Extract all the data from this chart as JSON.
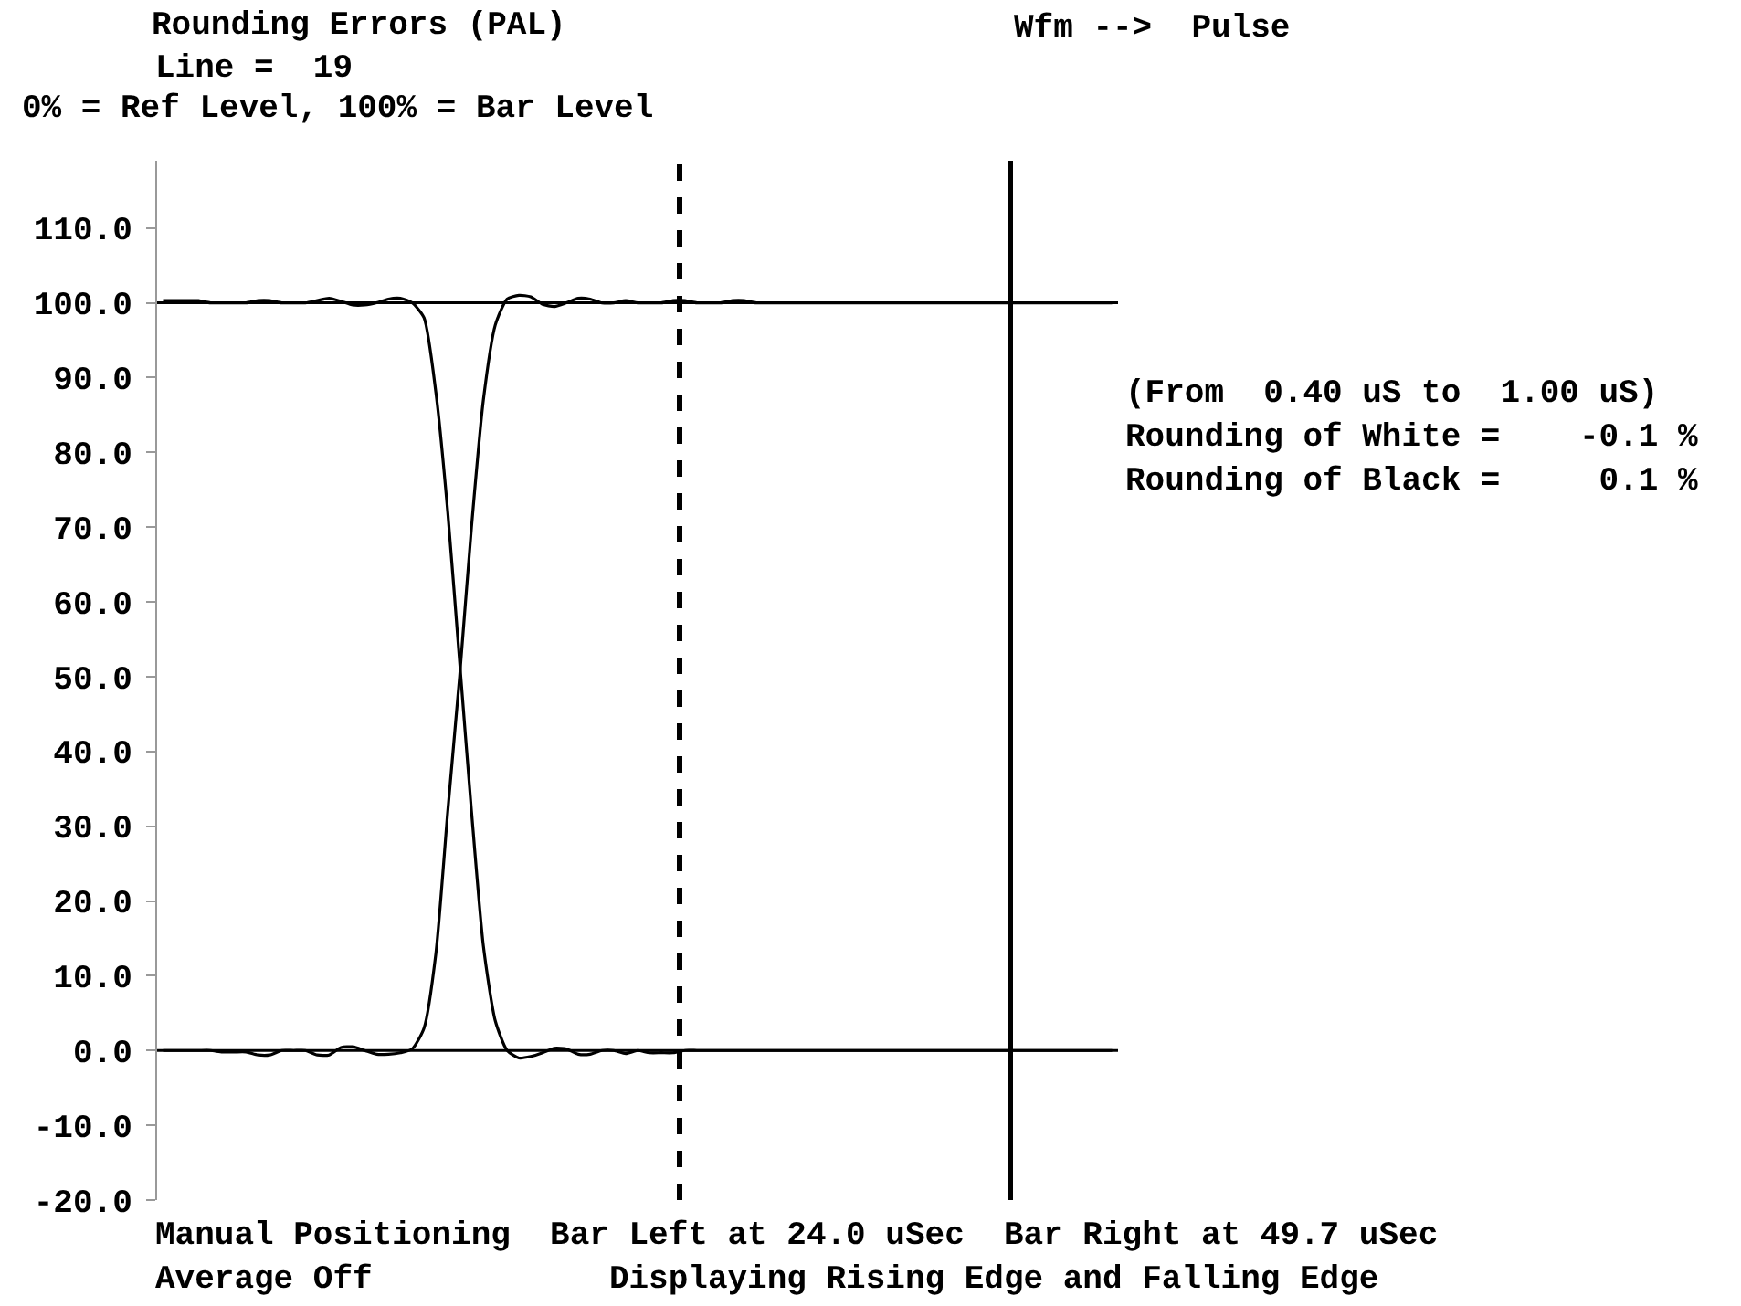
{
  "chart_data": {
    "type": "line",
    "title": "Rounding Errors (PAL)",
    "subtitle": "Line =  19",
    "annotations": [
      "0% = Ref Level, 100% = Bar Level",
      "Wfm -->  Pulse",
      "(From  0.40 uS to  1.00 uS)",
      "Rounding of White =    -0.1 %",
      "Rounding of Black =     0.1 %",
      "Manual Positioning  Bar Left at 24.0 uSec  Bar Right at 49.7 uSec",
      "Average Off            Displaying Rising Edge and Falling Edge"
    ],
    "categories": [
      null,
      null,
      null,
      null,
      null,
      null,
      null,
      null,
      null,
      null,
      null,
      null,
      null,
      null,
      null,
      null,
      null,
      null,
      null,
      null,
      null,
      null,
      null,
      null,
      null,
      null,
      null,
      null,
      null,
      null,
      null,
      null,
      null,
      null,
      null,
      null,
      null,
      null,
      null,
      null,
      null,
      null,
      null,
      null,
      null,
      null,
      null,
      null,
      null,
      null,
      null,
      null,
      null,
      null,
      null,
      null,
      null,
      null,
      null,
      null,
      null,
      null,
      null,
      null,
      null,
      null,
      null,
      null,
      null,
      null,
      null,
      null,
      null,
      null,
      null,
      null,
      null,
      null,
      null,
      null,
      null
    ],
    "series": [
      {
        "color": "#000000",
        "values": [
          100.3,
          100.3,
          100.3,
          100.3,
          100,
          100,
          100,
          100,
          100.3,
          100.3,
          100,
          100,
          100,
          100.3,
          100.6,
          100.2,
          99.7,
          99.7,
          100,
          100.5,
          100.6,
          100,
          98,
          88,
          72,
          52,
          32,
          14,
          4,
          0,
          -1,
          -0.8,
          -0.3,
          0.3,
          0.2,
          -0.5,
          -0.5,
          0,
          0,
          -0.4,
          0,
          -0.3,
          -0.3,
          -0.3,
          0,
          0,
          0,
          0,
          0,
          0,
          0,
          0,
          0,
          0,
          0,
          0,
          0,
          0,
          0,
          0,
          0,
          0,
          0,
          0,
          0,
          0,
          0,
          0,
          0,
          0,
          0,
          0,
          0,
          0,
          0,
          0,
          0,
          0,
          0,
          0,
          0
        ]
      },
      {
        "color": "#000000",
        "values": [
          0,
          0,
          0,
          0,
          0,
          -0.2,
          -0.2,
          -0.2,
          -0.6,
          -0.6,
          0,
          0,
          0,
          -0.6,
          -0.6,
          0.4,
          0.5,
          0,
          -0.5,
          -0.5,
          -0.3,
          0.2,
          3,
          13,
          32,
          50,
          70,
          87,
          97,
          100.5,
          101,
          100.8,
          99.8,
          99.5,
          100,
          100.6,
          100.5,
          100,
          100,
          100.3,
          100,
          100,
          100,
          100.3,
          100.3,
          100,
          100,
          100,
          100.3,
          100.3,
          100,
          100,
          100,
          100,
          100,
          100,
          100,
          100,
          100,
          100,
          100,
          100,
          100,
          100,
          100,
          100,
          100,
          100,
          100,
          100,
          100,
          100,
          100,
          100,
          100,
          100,
          100,
          100,
          100,
          100,
          100
        ]
      }
    ],
    "ylim": [
      -20,
      119
    ],
    "yticks": [
      {
        "value": -20,
        "label": "-20.0"
      },
      {
        "value": -10,
        "label": "-10.0"
      },
      {
        "value": 0,
        "label": "0.0"
      },
      {
        "value": 10,
        "label": "10.0"
      },
      {
        "value": 20,
        "label": "20.0"
      },
      {
        "value": 30,
        "label": "30.0"
      },
      {
        "value": 40,
        "label": "40.0"
      },
      {
        "value": 50,
        "label": "50.0"
      },
      {
        "value": 60,
        "label": "60.0"
      },
      {
        "value": 70,
        "label": "70.0"
      },
      {
        "value": 80,
        "label": "80.0"
      },
      {
        "value": 90,
        "label": "90.0"
      },
      {
        "value": 100,
        "label": "100.0"
      },
      {
        "value": 110,
        "label": "110.0"
      }
    ],
    "ref_lines": [
      {
        "axis": "y",
        "value": 0,
        "color": "#000000",
        "line_style": "solid"
      },
      {
        "axis": "y",
        "value": 100,
        "color": "#000000",
        "line_style": "solid"
      }
    ],
    "marker": "none",
    "line_style": "solid",
    "tick_labels": "y"
  }
}
